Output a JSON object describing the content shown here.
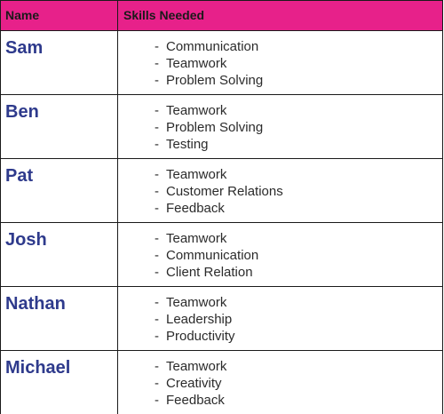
{
  "header": {
    "name_label": "Name",
    "skills_label": "Skills Needed"
  },
  "rows": [
    {
      "name": "Sam",
      "skills": [
        "Communication",
        "Teamwork",
        "Problem Solving"
      ]
    },
    {
      "name": "Ben",
      "skills": [
        "Teamwork",
        "Problem Solving",
        "Testing"
      ]
    },
    {
      "name": "Pat",
      "skills": [
        "Teamwork",
        "Customer Relations",
        "Feedback"
      ]
    },
    {
      "name": "Josh",
      "skills": [
        "Teamwork",
        "Communication",
        "Client Relation"
      ]
    },
    {
      "name": "Nathan",
      "skills": [
        "Teamwork",
        "Leadership",
        "Productivity"
      ]
    },
    {
      "name": "Michael",
      "skills": [
        "Teamwork",
        "Creativity",
        "Feedback"
      ]
    }
  ],
  "colors": {
    "header_bg": "#e7218a",
    "name_text": "#2e3a8c",
    "border": "#1a1a1a"
  }
}
